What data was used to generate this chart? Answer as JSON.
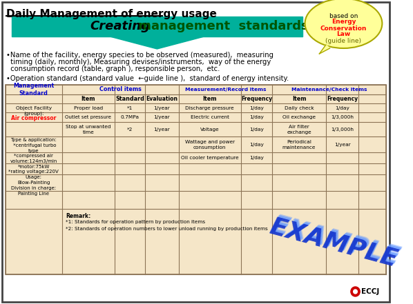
{
  "title": "Daily Management of energy usage",
  "banner_text_black": "Creating",
  "banner_text_green": " management  standards",
  "banner_bg": "#00b09b",
  "bubble_line1": "based on",
  "bubble_line2": "Energy",
  "bubble_line3": "Conservation",
  "bubble_line4": "Law",
  "bubble_line5": "(guide line)",
  "bullet1a": "•Name of the facility, energy species to be observed (measured),  measuring",
  "bullet1b": "  timing (daily, monthly), Measuring devises/instruments,  way of the energy",
  "bullet1c": "  consumption record (table, graph ), responsible person,  etc.",
  "bullet2": "•Operation standard (standard value  ←guide line ),  standard of energy intensity.",
  "table_bg": "#f5e6c8",
  "table_border": "#8b7355",
  "header_color": "#0000cd",
  "air_comp_color": "#ff0000",
  "eccj_red": "#cc0000",
  "outer_border": "#444444",
  "background": "#ffffff"
}
